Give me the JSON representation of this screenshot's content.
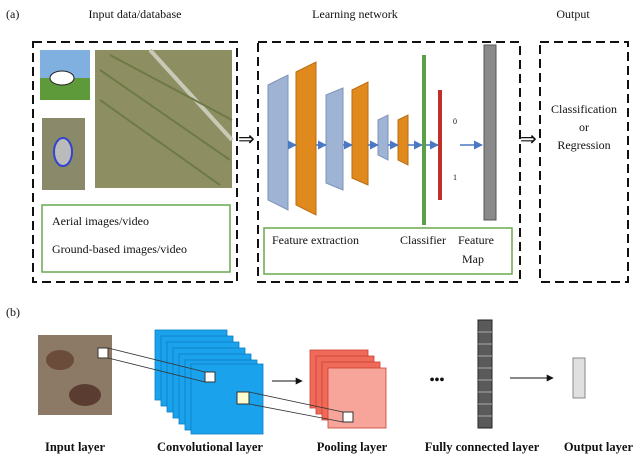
{
  "panel_a": {
    "label": "(a)",
    "headers": [
      "Input data/database",
      "Learning network",
      "Output"
    ],
    "input_captions": [
      "Aerial images/video",
      "Ground-based images/video"
    ],
    "network_labels": {
      "feature_extraction": "Feature extraction",
      "classifier": "Classifier",
      "feature_map": [
        "Feature",
        "Map"
      ]
    },
    "classifier_outputs": [
      "0",
      "1"
    ],
    "output_text": [
      "Classification",
      "or",
      "Regression"
    ]
  },
  "panel_b": {
    "label": "(b)",
    "ellipsis": "•••",
    "layers": [
      "Input layer",
      "Convolutional layer",
      "Pooling layer",
      "Fully connected layer",
      "Output layer"
    ]
  }
}
